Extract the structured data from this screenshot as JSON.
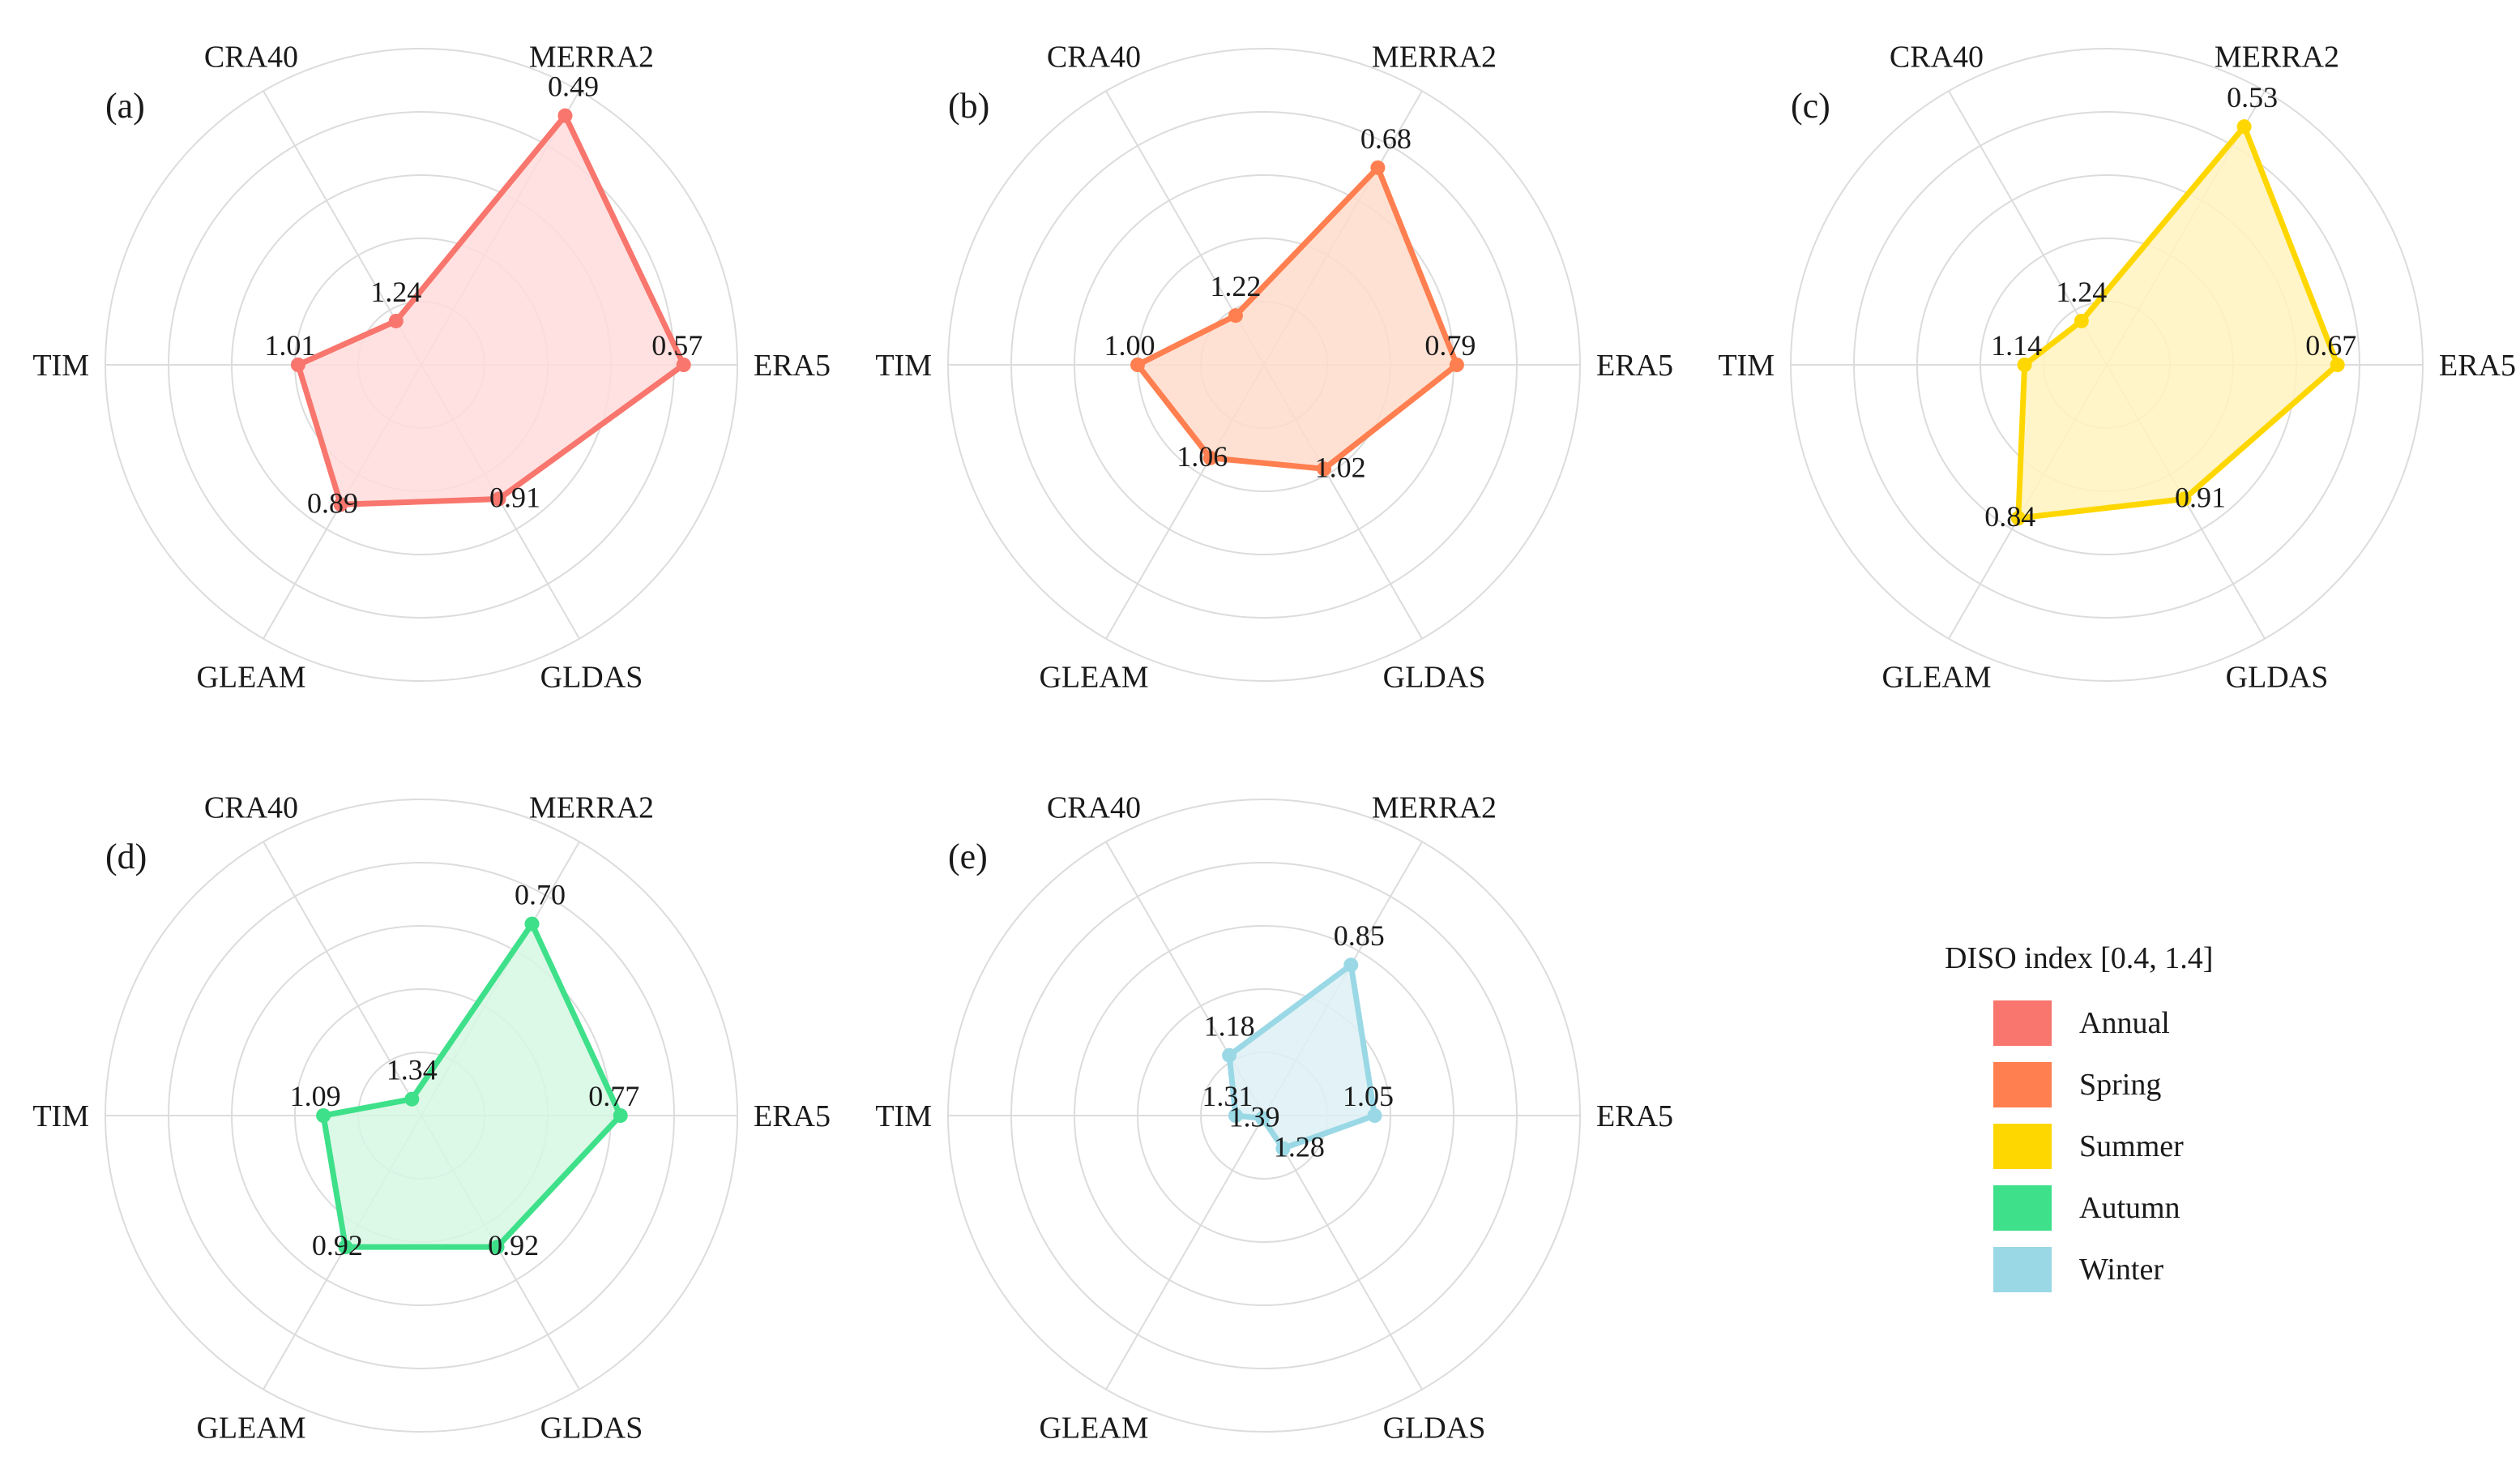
{
  "chart_data": {
    "type": "radar",
    "axes": [
      "ERA5",
      "MERRA2",
      "CRA40",
      "TIM",
      "GLEAM",
      "GLDAS"
    ],
    "range": [
      0.4,
      1.4
    ],
    "reversed_radial": true,
    "grid": true,
    "legend": {
      "title": "DISO index [0.4, 1.4]",
      "position": "right",
      "entries": [
        {
          "name": "Annual",
          "color": "#F8766D"
        },
        {
          "name": "Spring",
          "color": "#FF7F50"
        },
        {
          "name": "Summer",
          "color": "#FFD700"
        },
        {
          "name": "Autumn",
          "color": "#3EE08A"
        },
        {
          "name": "Winter",
          "color": "#9AD8E6"
        }
      ]
    },
    "panels": [
      {
        "tag": "(a)",
        "series": "Annual",
        "color": "#F8766D",
        "fill": "#FFDCDC",
        "values": {
          "ERA5": 0.57,
          "MERRA2": 0.49,
          "CRA40": 1.24,
          "TIM": 1.01,
          "GLEAM": 0.89,
          "GLDAS": 0.91
        },
        "labels": {
          "ERA5": "0.57",
          "MERRA2": "0.49",
          "CRA40": "1.24",
          "TIM": "1.01",
          "GLEAM": "0.89",
          "GLDAS": "0.91"
        }
      },
      {
        "tag": "(b)",
        "series": "Spring",
        "color": "#FF7F50",
        "fill": "#FEDCCB",
        "values": {
          "ERA5": 0.79,
          "MERRA2": 0.68,
          "CRA40": 1.22,
          "TIM": 1.0,
          "GLEAM": 1.06,
          "GLDAS": 1.02
        },
        "labels": {
          "ERA5": "0.79",
          "MERRA2": "0.68",
          "CRA40": "1.22",
          "TIM": "1.00",
          "GLEAM": "1.06",
          "GLDAS": "1.02"
        }
      },
      {
        "tag": "(c)",
        "series": "Summer",
        "color": "#FFD700",
        "fill": "#FFF3C0",
        "values": {
          "ERA5": 0.67,
          "MERRA2": 0.53,
          "CRA40": 1.24,
          "TIM": 1.14,
          "GLEAM": 0.84,
          "GLDAS": 0.91
        },
        "labels": {
          "ERA5": "0.67",
          "MERRA2": "0.53",
          "CRA40": "1.24",
          "TIM": "1.14",
          "GLEAM": "0.84",
          "GLDAS": "0.91"
        }
      },
      {
        "tag": "(d)",
        "series": "Autumn",
        "color": "#3EE08A",
        "fill": "#D6F7E3",
        "values": {
          "ERA5": 0.77,
          "MERRA2": 0.7,
          "CRA40": 1.34,
          "TIM": 1.09,
          "GLEAM": 0.92,
          "GLDAS": 0.92
        },
        "labels": {
          "ERA5": "0.77",
          "MERRA2": "0.70",
          "CRA40": "1.34",
          "TIM": "1.09",
          "GLEAM": "0.92",
          "GLDAS": "0.92"
        }
      },
      {
        "tag": "(e)",
        "series": "Winter",
        "color": "#9AD8E6",
        "fill": "#DDF0F5",
        "values": {
          "ERA5": 1.05,
          "MERRA2": 0.85,
          "CRA40": 1.18,
          "TIM": 1.31,
          "GLEAM": 1.39,
          "GLDAS": 1.28
        },
        "labels": {
          "ERA5": "1.05",
          "MERRA2": "0.85",
          "CRA40": "1.18",
          "TIM": "1.31",
          "GLEAM": "1.39",
          "GLDAS": "1.28"
        }
      }
    ]
  }
}
